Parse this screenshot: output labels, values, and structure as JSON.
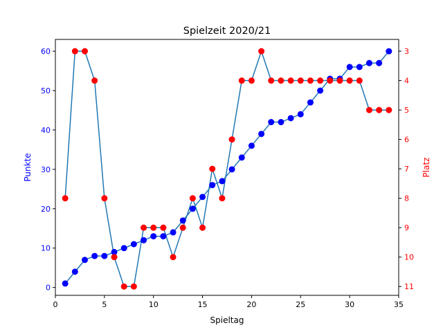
{
  "chart_data": {
    "type": "line",
    "title": "Spielzeit 2020/21",
    "xlabel": "Spieltag",
    "ylabel": "Punkte",
    "y2label": "Platz",
    "xlim": [
      0,
      35
    ],
    "ylim": [
      -2,
      63
    ],
    "y2lim": [
      11.3,
      2.6
    ],
    "xticks": [
      0,
      5,
      10,
      15,
      20,
      25,
      30,
      35
    ],
    "yticks": [
      0,
      10,
      20,
      30,
      40,
      50,
      60
    ],
    "y2ticks": [
      3,
      4,
      5,
      6,
      7,
      8,
      9,
      10,
      11
    ],
    "x": [
      1,
      2,
      3,
      4,
      5,
      6,
      7,
      8,
      9,
      10,
      11,
      12,
      13,
      14,
      15,
      16,
      17,
      18,
      19,
      20,
      21,
      22,
      23,
      24,
      25,
      26,
      27,
      28,
      29,
      30,
      31,
      32,
      33,
      34
    ],
    "series": [
      {
        "name": "Punkte",
        "axis": "left",
        "marker_color": "#0000ff",
        "line_color": "#1f77b4",
        "values": [
          1,
          4,
          7,
          8,
          8,
          9,
          10,
          11,
          12,
          13,
          13,
          14,
          17,
          20,
          23,
          26,
          27,
          30,
          33,
          36,
          39,
          42,
          42,
          43,
          44,
          47,
          50,
          53,
          53,
          56,
          56,
          57,
          57,
          60
        ]
      },
      {
        "name": "Platz",
        "axis": "right",
        "marker_color": "#ff0000",
        "line_color": "#1f77b4",
        "values": [
          8,
          3,
          3,
          4,
          8,
          10,
          11,
          11,
          9,
          9,
          9,
          10,
          9,
          8,
          9,
          7,
          8,
          6,
          4,
          4,
          3,
          4,
          4,
          4,
          4,
          4,
          4,
          4,
          4,
          4,
          4,
          5,
          5,
          5
        ]
      }
    ],
    "left_axis_color": "#0000ff",
    "right_axis_color": "#ff0000",
    "grid": false
  }
}
